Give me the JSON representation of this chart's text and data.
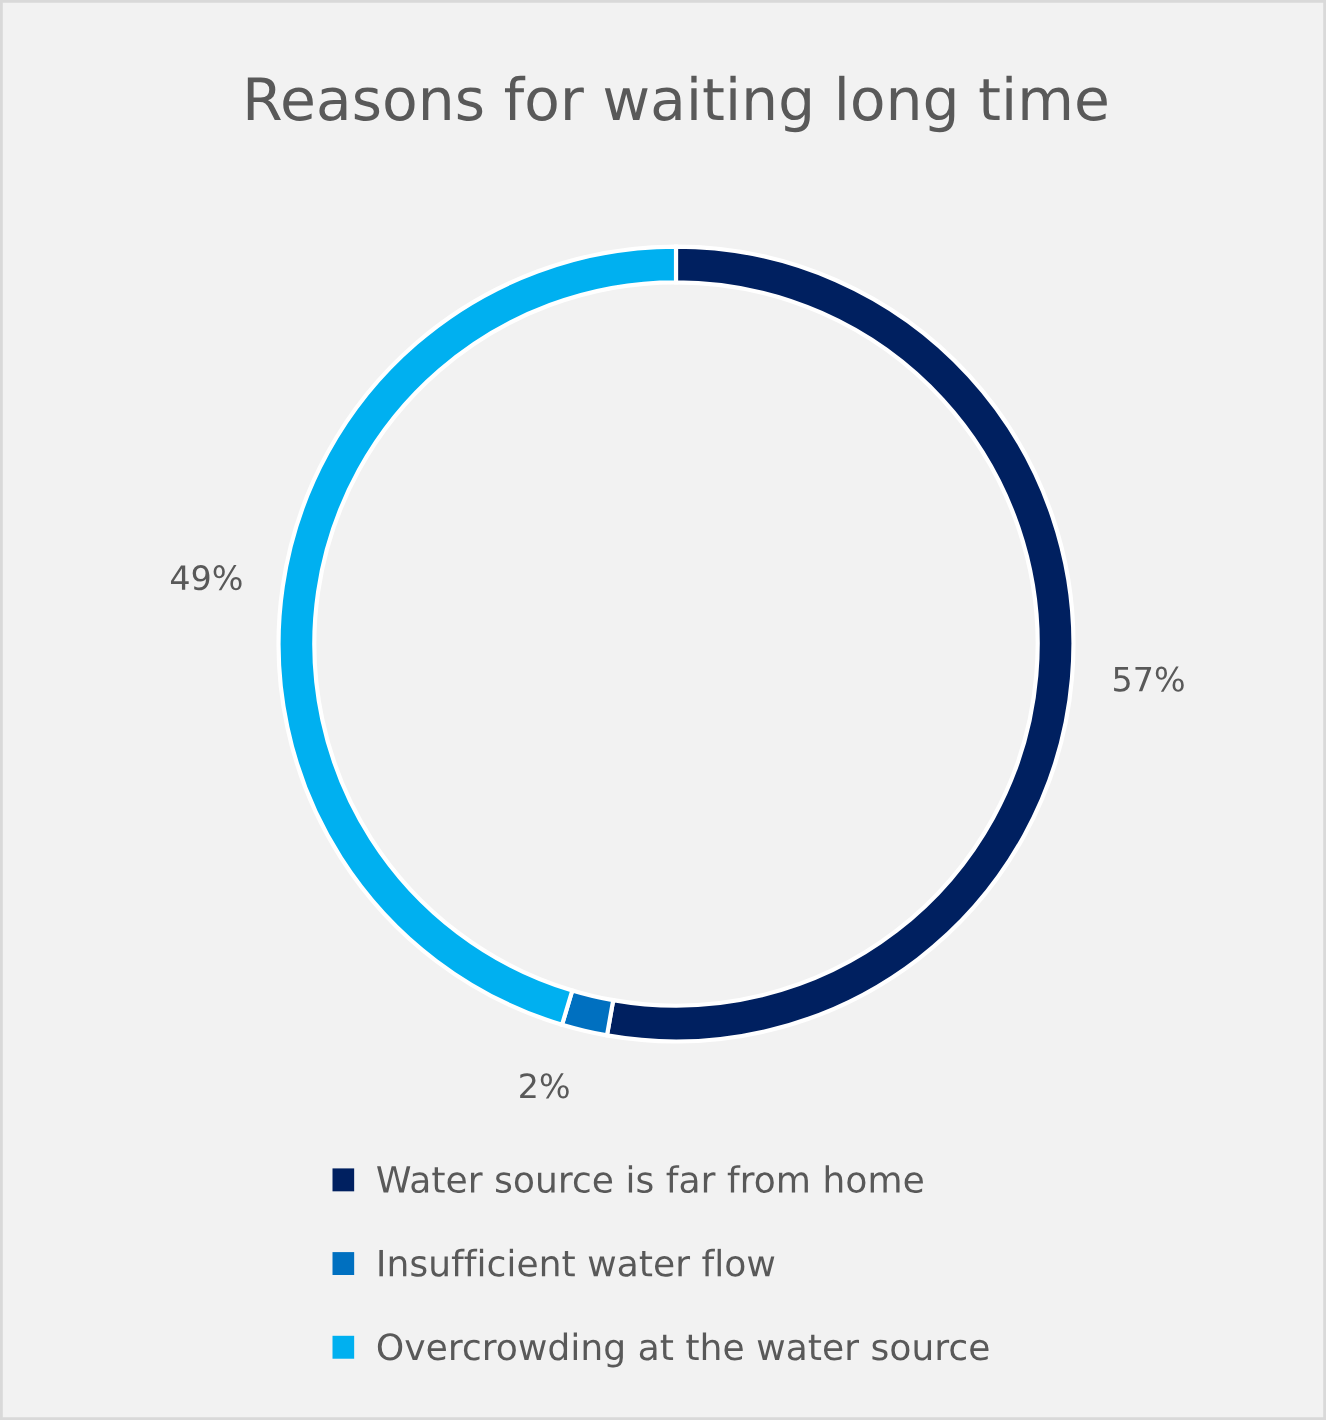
{
  "chart_data": {
    "type": "donut",
    "title": "Reasons for waiting long time",
    "categories": [
      "Water source is far from home",
      "Insufficient water flow",
      "Overcrowding at the water source"
    ],
    "values": [
      57,
      2,
      49
    ],
    "colors": [
      "#002060",
      "#0070c0",
      "#00b0f0"
    ],
    "value_labels": [
      "57%",
      "2%",
      "49%"
    ],
    "legend": "bottom"
  }
}
